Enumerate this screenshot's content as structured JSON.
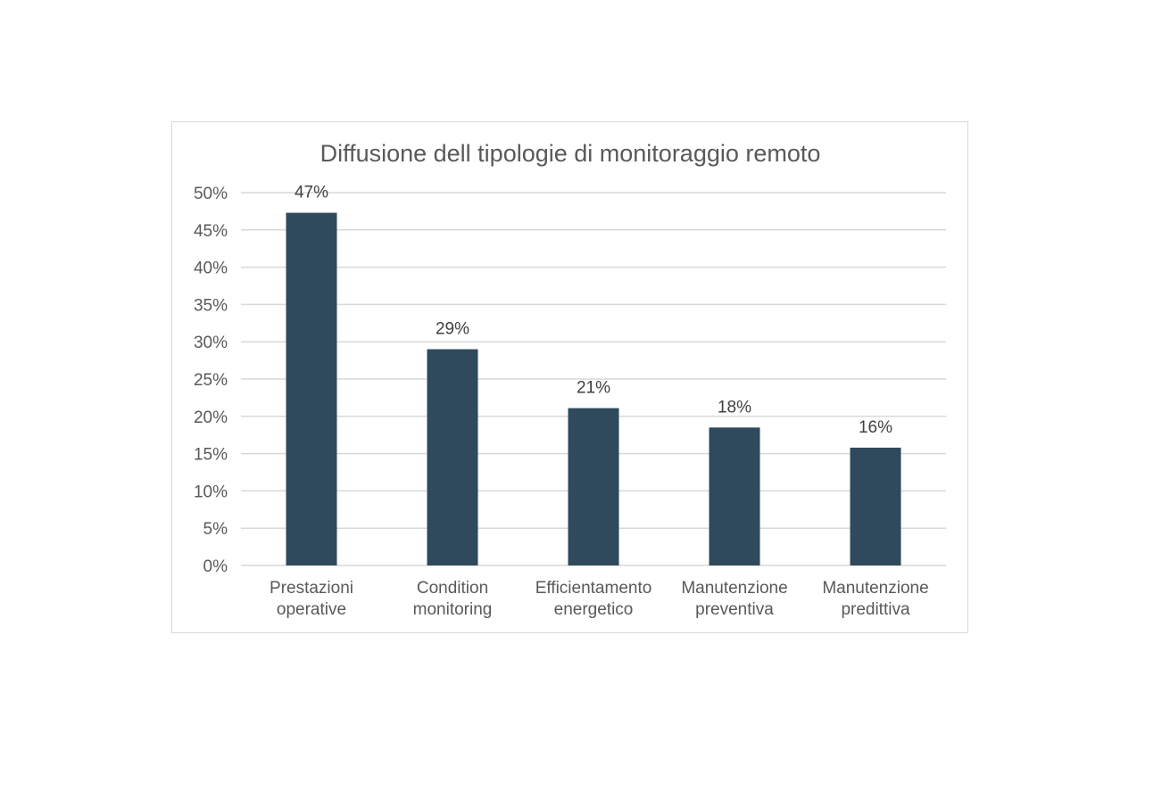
{
  "chart_data": {
    "type": "bar",
    "title": "Diffusione dell tipologie di monitoraggio remoto",
    "categories": [
      [
        "Prestazioni",
        "operative"
      ],
      [
        "Condition",
        "monitoring"
      ],
      [
        "Efficientamento",
        "energetico"
      ],
      [
        "Manutenzione",
        "preventiva"
      ],
      [
        "Manutenzione",
        "predittiva"
      ]
    ],
    "values": [
      47.3,
      29.0,
      21.1,
      18.5,
      15.8
    ],
    "data_labels": [
      "47%",
      "29%",
      "21%",
      "18%",
      "16%"
    ],
    "ylim": [
      0,
      50
    ],
    "y_ticks": [
      0,
      5,
      10,
      15,
      20,
      25,
      30,
      35,
      40,
      45,
      50
    ],
    "y_tick_labels": [
      "0%",
      "5%",
      "10%",
      "15%",
      "20%",
      "25%",
      "30%",
      "35%",
      "40%",
      "45%",
      "50%"
    ],
    "xlabel": "",
    "ylabel": "",
    "grid": true,
    "legend": "none",
    "bar_color": "#2e4a5c"
  }
}
